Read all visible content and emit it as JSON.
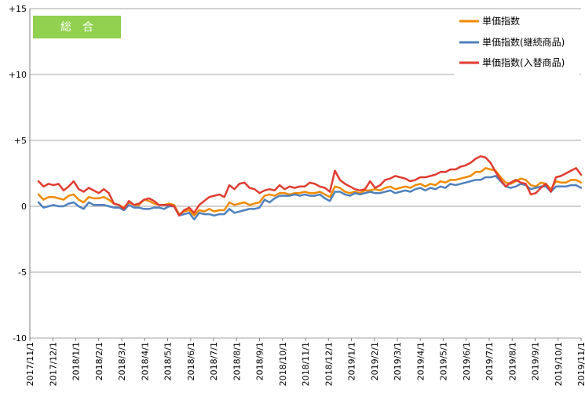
{
  "badge": {
    "label": "総　合",
    "color": "#92d050"
  },
  "chart_data": {
    "type": "line",
    "ylim": [
      -10,
      15
    ],
    "yticks": [
      {
        "value": 15,
        "label": "+15"
      },
      {
        "value": 10,
        "label": "+10"
      },
      {
        "value": 5,
        "label": "+5"
      },
      {
        "value": 0,
        "label": "0"
      },
      {
        "value": -5,
        "label": "-5"
      },
      {
        "value": -10,
        "label": "-10"
      }
    ],
    "xtick_labels": [
      "2017/11/1",
      "2017/12/1",
      "2018/1/1",
      "2018/2/1",
      "2018/3/1",
      "2018/4/1",
      "2018/5/1",
      "2018/6/1",
      "2018/7/1",
      "2018/8/1",
      "2018/9/1",
      "2018/10/1",
      "2018/11/1",
      "2018/12/1",
      "2019/1/1",
      "2019/2/1",
      "2019/3/1",
      "2019/4/1",
      "2019/5/1",
      "2019/6/1",
      "2019/7/1",
      "2019/8/1",
      "2019/9/1",
      "2019/10/1",
      "2019/11/1"
    ],
    "grid": "horizontal",
    "legend_position": "top-right",
    "series": [
      {
        "name": "単価指数",
        "color": "#f18a00",
        "values": [
          0.9,
          0.5,
          0.7,
          0.7,
          0.6,
          0.5,
          0.8,
          0.9,
          0.5,
          0.3,
          0.7,
          0.6,
          0.6,
          0.7,
          0.5,
          0.2,
          0.1,
          -0.1,
          0.3,
          0.1,
          0.1,
          0.5,
          0.4,
          0.2,
          0.1,
          0.1,
          0.2,
          0.1,
          -0.6,
          -0.4,
          -0.3,
          -0.7,
          -0.3,
          -0.4,
          -0.2,
          -0.4,
          -0.3,
          -0.3,
          0.3,
          0.1,
          0.2,
          0.3,
          0.1,
          0.2,
          0.3,
          0.8,
          0.9,
          0.8,
          1.0,
          1.0,
          0.9,
          1.0,
          1.0,
          1.1,
          1.0,
          1.0,
          1.1,
          0.9,
          0.7,
          1.5,
          1.4,
          1.1,
          1.0,
          1.1,
          1.0,
          1.2,
          1.2,
          1.3,
          1.2,
          1.4,
          1.5,
          1.3,
          1.4,
          1.5,
          1.4,
          1.6,
          1.7,
          1.5,
          1.7,
          1.6,
          1.9,
          1.8,
          2.0,
          2.0,
          2.1,
          2.2,
          2.3,
          2.6,
          2.6,
          2.9,
          2.8,
          2.7,
          2.2,
          1.8,
          1.7,
          1.9,
          2.1,
          2.0,
          1.6,
          1.5,
          1.8,
          1.7,
          1.3,
          1.9,
          1.8,
          1.8,
          2.0,
          2.0,
          1.8
        ]
      },
      {
        "name": "単価指数(継続商品)",
        "color": "#4f81bd",
        "values": [
          0.3,
          -0.1,
          0.0,
          0.1,
          0.0,
          0.0,
          0.2,
          0.3,
          0.0,
          -0.2,
          0.3,
          0.1,
          0.1,
          0.1,
          0.0,
          -0.1,
          -0.1,
          -0.3,
          0.1,
          -0.1,
          -0.1,
          -0.2,
          -0.2,
          -0.1,
          -0.1,
          -0.2,
          0.0,
          0.0,
          -0.7,
          -0.6,
          -0.5,
          -1.0,
          -0.5,
          -0.6,
          -0.6,
          -0.7,
          -0.6,
          -0.6,
          -0.2,
          -0.5,
          -0.4,
          -0.3,
          -0.2,
          -0.2,
          -0.1,
          0.5,
          0.3,
          0.6,
          0.8,
          0.8,
          0.8,
          0.9,
          0.8,
          0.9,
          0.8,
          0.8,
          0.9,
          0.6,
          0.4,
          1.1,
          1.1,
          0.9,
          0.8,
          1.0,
          0.9,
          1.0,
          1.1,
          1.0,
          1.0,
          1.1,
          1.2,
          1.0,
          1.1,
          1.2,
          1.1,
          1.3,
          1.4,
          1.2,
          1.4,
          1.3,
          1.5,
          1.4,
          1.7,
          1.6,
          1.7,
          1.8,
          1.9,
          2.0,
          2.0,
          2.2,
          2.2,
          2.3,
          1.9,
          1.5,
          1.4,
          1.5,
          1.7,
          1.6,
          1.3,
          1.4,
          1.5,
          1.5,
          1.1,
          1.5,
          1.5,
          1.5,
          1.6,
          1.6,
          1.4
        ]
      },
      {
        "name": "単価指数(入替商品)",
        "color": "#e03c31",
        "values": [
          1.9,
          1.5,
          1.7,
          1.6,
          1.7,
          1.2,
          1.5,
          1.9,
          1.3,
          1.1,
          1.4,
          1.2,
          1.0,
          1.3,
          1.0,
          0.2,
          0.1,
          -0.2,
          0.4,
          0.1,
          0.2,
          0.5,
          0.6,
          0.4,
          0.1,
          0.1,
          0.1,
          0.0,
          -0.7,
          -0.3,
          -0.1,
          -0.5,
          0.1,
          0.4,
          0.7,
          0.8,
          0.9,
          0.7,
          1.6,
          1.3,
          1.7,
          1.8,
          1.4,
          1.3,
          1.0,
          1.2,
          1.3,
          1.2,
          1.6,
          1.3,
          1.5,
          1.4,
          1.5,
          1.5,
          1.8,
          1.7,
          1.5,
          1.4,
          1.1,
          2.7,
          2.0,
          1.7,
          1.5,
          1.3,
          1.2,
          1.3,
          1.9,
          1.4,
          1.6,
          2.0,
          2.1,
          2.3,
          2.2,
          2.1,
          1.9,
          2.0,
          2.2,
          2.2,
          2.3,
          2.4,
          2.6,
          2.6,
          2.8,
          2.8,
          3.0,
          3.1,
          3.3,
          3.6,
          3.8,
          3.7,
          3.3,
          2.6,
          2.0,
          1.5,
          1.8,
          2.0,
          1.8,
          1.7,
          0.9,
          1.0,
          1.4,
          1.7,
          1.1,
          2.2,
          2.3,
          2.5,
          2.7,
          2.9,
          2.4
        ]
      }
    ]
  }
}
